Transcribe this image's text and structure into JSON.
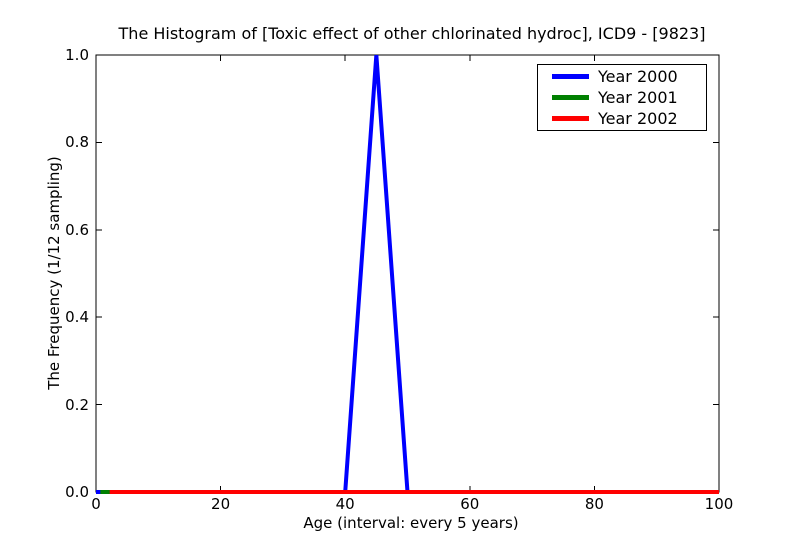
{
  "title": "The Histogram of [Toxic effect of other chlorinated hydroc], ICD9 - [9823]",
  "chart_data": {
    "type": "line",
    "title": "The Histogram of [Toxic effect of other chlorinated hydroc], ICD9 - [9823]",
    "xlabel": "Age (interval: every 5 years)",
    "ylabel": "The Frequency (1/12 sampling)",
    "xlim": [
      0,
      100
    ],
    "ylim": [
      0,
      1.0
    ],
    "grid": false,
    "legend_position": "upper right",
    "x": [
      0,
      5,
      10,
      15,
      20,
      25,
      30,
      35,
      40,
      45,
      50,
      55,
      60,
      65,
      70,
      75,
      80,
      85,
      90,
      95,
      100
    ],
    "series": [
      {
        "name": "Year 2000",
        "color": "#0000ff",
        "values": [
          0,
          0,
          0,
          0,
          0,
          0,
          0,
          0,
          0,
          1.0,
          0,
          0,
          0,
          0,
          0,
          0,
          0,
          0,
          0,
          0,
          0
        ]
      },
      {
        "name": "Year 2001",
        "color": "#008000",
        "values": [
          0,
          0,
          0,
          0,
          0,
          0,
          0,
          0,
          0,
          0,
          0,
          0,
          0,
          0,
          0,
          0,
          0,
          0,
          0,
          0,
          0
        ]
      },
      {
        "name": "Year 2002",
        "color": "#ff0000",
        "values": [
          0,
          0,
          0,
          0,
          0,
          0,
          0,
          0,
          0,
          0,
          0,
          0,
          0,
          0,
          0,
          0,
          0,
          0,
          0,
          0,
          0
        ]
      }
    ],
    "x_ticks": [
      0,
      20,
      40,
      60,
      80,
      100
    ],
    "x_tick_labels": [
      "0",
      "20",
      "40",
      "60",
      "80",
      "100"
    ],
    "y_ticks": [
      0.0,
      0.2,
      0.4,
      0.6,
      0.8,
      1.0
    ],
    "y_tick_labels": [
      "0.0",
      "0.2",
      "0.4",
      "0.6",
      "0.8",
      "1.0"
    ],
    "render_hints": {
      "series_draw_start_x": [
        0,
        0.7,
        2.2
      ],
      "line_width": 4,
      "axis_color": "#000000",
      "tick_length": 6
    }
  }
}
